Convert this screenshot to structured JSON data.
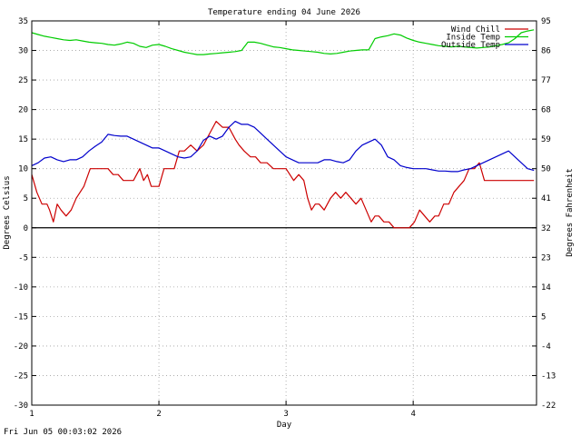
{
  "chart_data": {
    "type": "line",
    "title": "Temperature ending 04 June 2026",
    "xlabel": "Day",
    "ylabel_left": "Degrees Celsius",
    "ylabel_right": "Degrees Fahrenheit",
    "footer": "Fri Jun 05 00:03:02 2026",
    "xlim": [
      1,
      4.97
    ],
    "ylim": [
      -30,
      35
    ],
    "grid": true,
    "legend_position": "top-right",
    "x_ticks": [
      1,
      2,
      3,
      4
    ],
    "x_tick_labels": [
      "1",
      "2",
      "3",
      "4"
    ],
    "y_ticks": [
      35,
      30,
      25,
      20,
      15,
      10,
      5,
      0,
      -5,
      -10,
      -15,
      -20,
      -25,
      -30
    ],
    "y_tick_labels": [
      "35",
      "30",
      "25",
      "20",
      "15",
      "10",
      "5",
      "0",
      "-5",
      "-10",
      "-15",
      "-20",
      "-25",
      "-30"
    ],
    "y2_tick_values_c": [
      35,
      30,
      25,
      20,
      15,
      10,
      5,
      0,
      -5,
      -10,
      -15,
      -20,
      -25,
      -30
    ],
    "y2_tick_labels": [
      "95",
      "86",
      "77",
      "68",
      "59",
      "50",
      "41",
      "32",
      "23",
      "14",
      "5",
      "-4",
      "-13",
      "-22"
    ],
    "series": [
      {
        "name": "Wind Chill",
        "color": "#cc0000",
        "x": [
          1.0,
          1.04,
          1.08,
          1.12,
          1.14,
          1.17,
          1.2,
          1.23,
          1.27,
          1.31,
          1.35,
          1.41,
          1.46,
          1.5,
          1.55,
          1.6,
          1.64,
          1.68,
          1.72,
          1.76,
          1.8,
          1.85,
          1.88,
          1.91,
          1.94,
          1.97,
          2.0,
          2.04,
          2.07,
          2.12,
          2.16,
          2.2,
          2.25,
          2.3,
          2.35,
          2.4,
          2.45,
          2.5,
          2.55,
          2.6,
          2.63,
          2.67,
          2.72,
          2.76,
          2.8,
          2.85,
          2.9,
          2.95,
          3.0,
          3.03,
          3.06,
          3.1,
          3.14,
          3.17,
          3.2,
          3.23,
          3.26,
          3.3,
          3.35,
          3.39,
          3.43,
          3.47,
          3.51,
          3.55,
          3.59,
          3.63,
          3.67,
          3.7,
          3.73,
          3.77,
          3.81,
          3.85,
          3.89,
          3.93,
          3.97,
          4.01,
          4.05,
          4.09,
          4.13,
          4.17,
          4.2,
          4.24,
          4.28,
          4.32,
          4.36,
          4.4,
          4.44,
          4.48,
          4.52,
          4.56,
          4.6,
          4.64,
          4.68,
          4.72,
          4.76,
          4.8,
          4.85,
          4.9,
          4.95
        ],
        "y": [
          9,
          6,
          4,
          4,
          3,
          1,
          4,
          3,
          2,
          3,
          5,
          7,
          10,
          10,
          10,
          10,
          9,
          9,
          8,
          8,
          8,
          10,
          8,
          9,
          7,
          7,
          7,
          10,
          10,
          10,
          13,
          13,
          14,
          13,
          14,
          16,
          18,
          17,
          17,
          15,
          14,
          13,
          12,
          12,
          11,
          11,
          10,
          10,
          10,
          9,
          8,
          9,
          8,
          5,
          3,
          4,
          4,
          3,
          5,
          6,
          5,
          6,
          5,
          4,
          5,
          3,
          1,
          2,
          2,
          1,
          1,
          0,
          0,
          0,
          0,
          1,
          3,
          2,
          1,
          2,
          2,
          4,
          4,
          6,
          7,
          8,
          10,
          10,
          11,
          8,
          8,
          8,
          8,
          8,
          8,
          8,
          8,
          8,
          8
        ]
      },
      {
        "name": "Inside Temp",
        "color": "#00cc00",
        "x": [
          1.0,
          1.05,
          1.1,
          1.15,
          1.2,
          1.25,
          1.3,
          1.35,
          1.4,
          1.45,
          1.5,
          1.55,
          1.6,
          1.65,
          1.7,
          1.75,
          1.8,
          1.85,
          1.9,
          1.95,
          2.0,
          2.05,
          2.1,
          2.15,
          2.2,
          2.25,
          2.3,
          2.35,
          2.4,
          2.45,
          2.5,
          2.55,
          2.6,
          2.65,
          2.7,
          2.75,
          2.8,
          2.85,
          2.9,
          2.95,
          3.0,
          3.05,
          3.1,
          3.15,
          3.2,
          3.25,
          3.3,
          3.35,
          3.4,
          3.45,
          3.5,
          3.55,
          3.6,
          3.65,
          3.7,
          3.75,
          3.8,
          3.85,
          3.9,
          3.95,
          4.0,
          4.05,
          4.1,
          4.15,
          4.2,
          4.25,
          4.3,
          4.35,
          4.4,
          4.45,
          4.5,
          4.55,
          4.6,
          4.65,
          4.7,
          4.75,
          4.8,
          4.85,
          4.9,
          4.95
        ],
        "y": [
          33.0,
          32.7,
          32.4,
          32.2,
          32.0,
          31.8,
          31.7,
          31.8,
          31.6,
          31.4,
          31.3,
          31.2,
          31.0,
          30.9,
          31.1,
          31.4,
          31.2,
          30.7,
          30.5,
          30.9,
          31.0,
          30.7,
          30.3,
          30.0,
          29.7,
          29.5,
          29.3,
          29.3,
          29.4,
          29.5,
          29.6,
          29.7,
          29.8,
          30.0,
          31.4,
          31.4,
          31.2,
          30.9,
          30.6,
          30.5,
          30.3,
          30.1,
          30.0,
          29.9,
          29.8,
          29.7,
          29.5,
          29.4,
          29.5,
          29.7,
          29.9,
          30.0,
          30.1,
          30.1,
          32.0,
          32.3,
          32.5,
          32.8,
          32.6,
          32.1,
          31.7,
          31.4,
          31.2,
          31.0,
          30.8,
          30.7,
          30.6,
          30.7,
          30.6,
          30.5,
          30.4,
          30.5,
          30.6,
          30.8,
          31.0,
          31.3,
          32.0,
          33.0,
          33.3,
          33.5
        ]
      },
      {
        "name": "Outside Temp",
        "color": "#0000cc",
        "x": [
          1.0,
          1.05,
          1.1,
          1.15,
          1.2,
          1.25,
          1.3,
          1.35,
          1.4,
          1.45,
          1.5,
          1.55,
          1.6,
          1.65,
          1.7,
          1.75,
          1.8,
          1.85,
          1.9,
          1.95,
          2.0,
          2.05,
          2.1,
          2.15,
          2.2,
          2.25,
          2.3,
          2.35,
          2.4,
          2.45,
          2.5,
          2.55,
          2.6,
          2.65,
          2.7,
          2.75,
          2.8,
          2.85,
          2.9,
          2.95,
          3.0,
          3.05,
          3.1,
          3.15,
          3.2,
          3.25,
          3.3,
          3.35,
          3.4,
          3.45,
          3.5,
          3.55,
          3.6,
          3.65,
          3.7,
          3.75,
          3.8,
          3.85,
          3.9,
          3.95,
          4.0,
          4.05,
          4.1,
          4.15,
          4.2,
          4.25,
          4.3,
          4.35,
          4.4,
          4.45,
          4.5,
          4.55,
          4.6,
          4.65,
          4.7,
          4.75,
          4.8,
          4.85,
          4.9,
          4.95
        ],
        "y": [
          10.5,
          11.0,
          11.8,
          12.0,
          11.5,
          11.2,
          11.5,
          11.5,
          12.0,
          13.0,
          13.8,
          14.5,
          15.8,
          15.6,
          15.5,
          15.5,
          15.0,
          14.5,
          14.0,
          13.5,
          13.5,
          13.0,
          12.5,
          12.0,
          11.8,
          12.0,
          13.0,
          14.8,
          15.5,
          15.0,
          15.5,
          17.0,
          18.0,
          17.5,
          17.5,
          17.0,
          16.0,
          15.0,
          14.0,
          13.0,
          12.0,
          11.5,
          11.0,
          11.0,
          11.0,
          11.0,
          11.5,
          11.5,
          11.2,
          11.0,
          11.5,
          13.0,
          14.0,
          14.5,
          15.0,
          14.0,
          12.0,
          11.5,
          10.5,
          10.2,
          10.0,
          10.0,
          10.0,
          9.8,
          9.6,
          9.6,
          9.5,
          9.5,
          9.8,
          10.0,
          10.5,
          11.0,
          11.5,
          12.0,
          12.5,
          13.0,
          12.0,
          11.0,
          10.0,
          9.7
        ]
      }
    ]
  }
}
